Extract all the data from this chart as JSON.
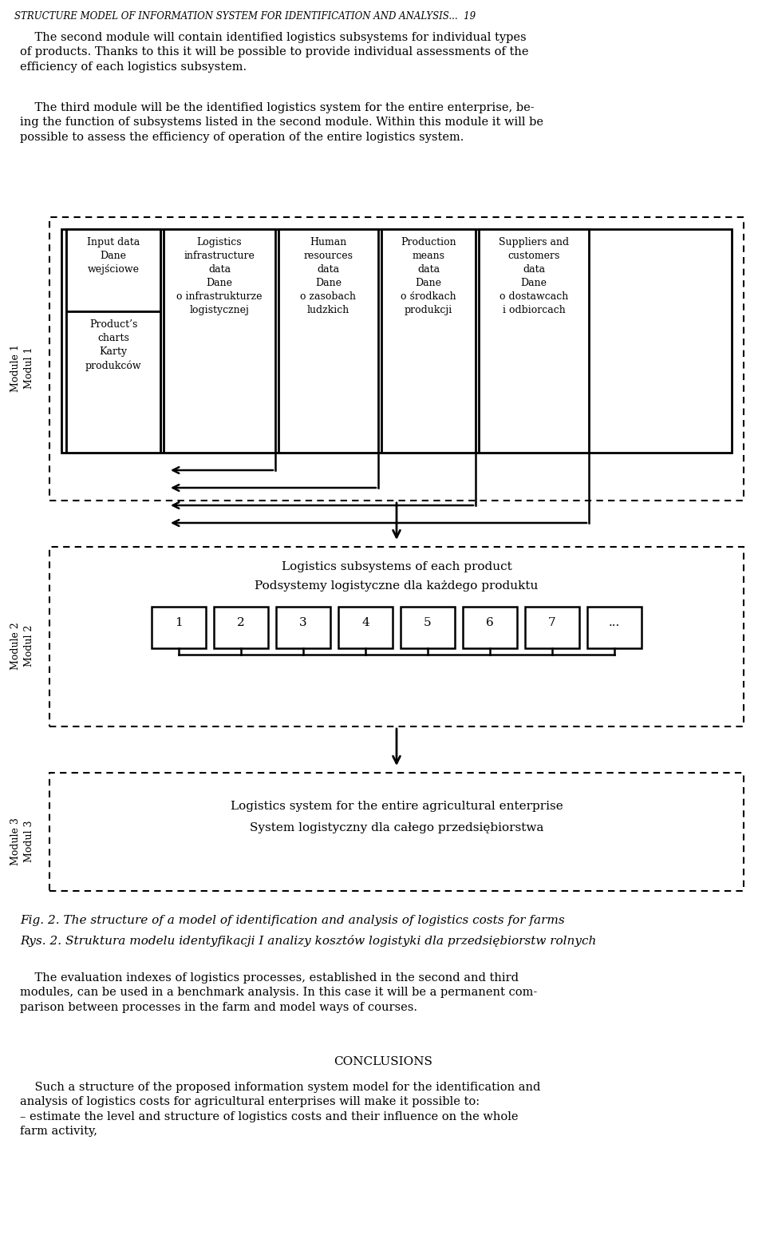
{
  "title_line": "STRUCTURE MODEL OF INFORMATION SYSTEM FOR IDENTIFICATION AND ANALYSIS...  19",
  "para1": "    The second module will contain identified logistics subsystems for individual types\nof products. Thanks to this it will be possible to provide individual assessments of the\nefficiency of each logistics subsystem.",
  "para2": "    The third module will be the identified logistics system for the entire enterprise, be-\ning the function of subsystems listed in the second module. Within this module it will be\npossible to assess the efficiency of operation of the entire logistics system.",
  "module1_label": "Module 1\nModul 1",
  "module2_label": "Module 2\nModul 2",
  "module3_label": "Module 3\nModul 3",
  "col1_box1": "Input data\nDane\nwejściowe",
  "col1_box2": "Product’s\ncharts\nKarty\nprodukców",
  "col2": "Logistics\ninfrastructure\ndata\nDane\no infrastrukturze\nlogistycznej",
  "col3": "Human\nresources\ndata\nDane\no zasobach\nludzkich",
  "col4": "Production\nmeans\ndata\nDane\no środkach\nprodukcji",
  "col5": "Suppliers and\ncustomers\ndata\nDane\no dostawcach\ni odbiorcach",
  "module2_text1": "Logistics subsystems of each product",
  "module2_text2": "Podsystemy logistyczne dla każdego produktu",
  "module2_boxes": [
    "1",
    "2",
    "3",
    "4",
    "5",
    "6",
    "7",
    "..."
  ],
  "module3_text1": "Logistics system for the entire agricultural enterprise",
  "module3_text2": "System logistyczny dla całego przedsiębiorstwa",
  "fig_caption1": "Fig. 2. The structure of a model of identification and analysis of logistics costs for farms",
  "fig_caption2": "Rys. 2. Struktura modelu identyfikacji I analizy kosztów logistyki dla przedsiębiorstw rolnych",
  "para3": "    The evaluation indexes of logistics processes, established in the second and third\nmodules, can be used in a benchmark analysis. In this case it will be a permanent com-\nparison between processes in the farm and model ways of courses.",
  "conclusions_title": "CONCLUSIONS",
  "para4": "    Such a structure of the proposed information system model for the identification and\nanalysis of logistics costs for agricultural enterprises will make it possible to:\n– estimate the level and structure of logistics costs and their influence on the whole\nfarm activity,"
}
